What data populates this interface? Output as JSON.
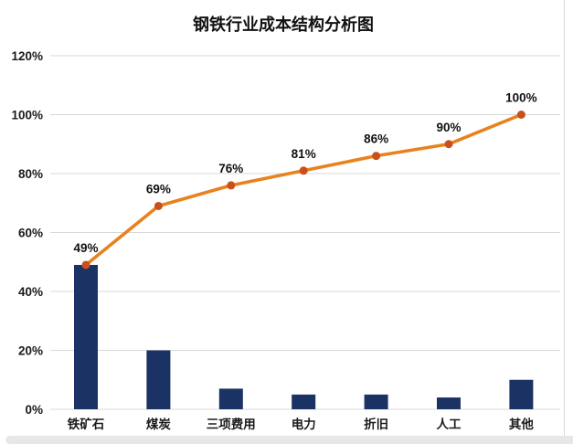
{
  "page": {
    "background": "#ffffff",
    "card_right_border_color": "#d9d9d9",
    "card_bottom_edge_color": "#e7e7e7"
  },
  "chart": {
    "title": "钢铁行业成本结构分析图",
    "chart_data": {
      "type": "bar",
      "subtype": "pareto-bar-with-cumulative-line",
      "title": "钢铁行业成本结构分析图",
      "categories": [
        "铁矿石",
        "煤炭",
        "三项费用",
        "电力",
        "折旧",
        "人工",
        "其他"
      ],
      "series": [
        {
          "name": "cost-share-bars",
          "type": "bar",
          "values": [
            49,
            20,
            7,
            5,
            5,
            4,
            10
          ],
          "color": "#1a3264"
        },
        {
          "name": "cumulative-share-line",
          "type": "line",
          "values": [
            49,
            69,
            76,
            81,
            86,
            90,
            100
          ],
          "labels": [
            "49%",
            "69%",
            "76%",
            "81%",
            "86%",
            "90%",
            "100%"
          ],
          "color": "#e8821e",
          "marker_color": "#c9501c"
        }
      ],
      "xlabel": "",
      "ylabel": "",
      "ylim": [
        0,
        120
      ],
      "yticks": [
        0,
        20,
        40,
        60,
        80,
        100,
        120
      ],
      "ytick_labels": [
        "0%",
        "20%",
        "40%",
        "60%",
        "80%",
        "100%",
        "120%"
      ],
      "grid": "horizontal",
      "gridline_color": "#d9d9d9",
      "axis_text_color": "#1a1a1a",
      "data_label_color": "#111111",
      "legend_position": "none"
    }
  }
}
